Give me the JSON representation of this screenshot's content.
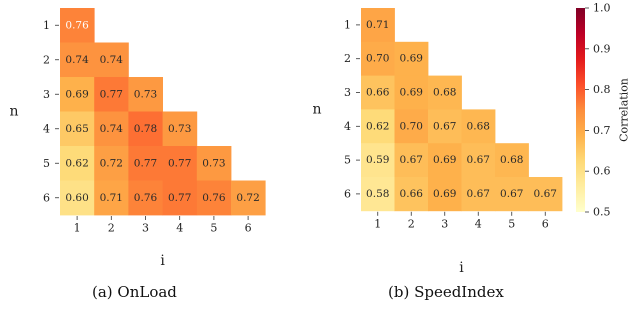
{
  "chart_data": [
    {
      "type": "heatmap",
      "title": "",
      "xlabel": "i",
      "ylabel": "n",
      "x_categories": [
        "1",
        "2",
        "3",
        "4",
        "5",
        "6"
      ],
      "y_categories": [
        "1",
        "2",
        "3",
        "4",
        "5",
        "6"
      ],
      "values": [
        [
          0.76,
          null,
          null,
          null,
          null,
          null
        ],
        [
          0.74,
          0.74,
          null,
          null,
          null,
          null
        ],
        [
          0.69,
          0.77,
          0.73,
          null,
          null,
          null
        ],
        [
          0.65,
          0.74,
          0.78,
          0.73,
          null,
          null
        ],
        [
          0.62,
          0.72,
          0.77,
          0.77,
          0.73,
          null
        ],
        [
          0.6,
          0.71,
          0.76,
          0.77,
          0.76,
          0.72
        ]
      ],
      "labels": [
        [
          "0.76"
        ],
        [
          "0.74",
          "0.74"
        ],
        [
          "0.69",
          "0.77",
          "0.73"
        ],
        [
          "0.65",
          "0.74",
          "0.78",
          "0.73"
        ],
        [
          "0.62",
          "0.72",
          "0.77",
          "0.77",
          "0.73"
        ],
        [
          "0.60",
          "0.71",
          "0.76",
          "0.77",
          "0.76",
          "0.72"
        ]
      ]
    },
    {
      "type": "heatmap",
      "title": "",
      "xlabel": "i",
      "ylabel": "n",
      "x_categories": [
        "1",
        "2",
        "3",
        "4",
        "5",
        "6"
      ],
      "y_categories": [
        "1",
        "2",
        "3",
        "4",
        "5",
        "6"
      ],
      "values": [
        [
          0.71,
          null,
          null,
          null,
          null,
          null
        ],
        [
          0.7,
          0.69,
          null,
          null,
          null,
          null
        ],
        [
          0.66,
          0.69,
          0.68,
          null,
          null,
          null
        ],
        [
          0.62,
          0.7,
          0.67,
          0.68,
          null,
          null
        ],
        [
          0.59,
          0.67,
          0.69,
          0.67,
          0.68,
          null
        ],
        [
          0.58,
          0.66,
          0.69,
          0.67,
          0.67,
          0.67
        ]
      ],
      "labels": [
        [
          "0.71"
        ],
        [
          "0.70",
          "0.69"
        ],
        [
          "0.66",
          "0.69",
          "0.68"
        ],
        [
          "0.62",
          "0.70",
          "0.67",
          "0.68"
        ],
        [
          "0.59",
          "0.67",
          "0.69",
          "0.67",
          "0.68"
        ],
        [
          "0.58",
          "0.66",
          "0.69",
          "0.67",
          "0.67",
          "0.67"
        ]
      ],
      "colorbar": {
        "label": "Correlation",
        "range": [
          0.5,
          1.0
        ],
        "ticks": [
          "0.5",
          "0.6",
          "0.7",
          "0.8",
          "0.9",
          "1.0"
        ],
        "colormap": "YlOrRd"
      }
    }
  ],
  "captions": {
    "a": "(a) OnLoad",
    "b": "(b) SpeedIndex"
  }
}
